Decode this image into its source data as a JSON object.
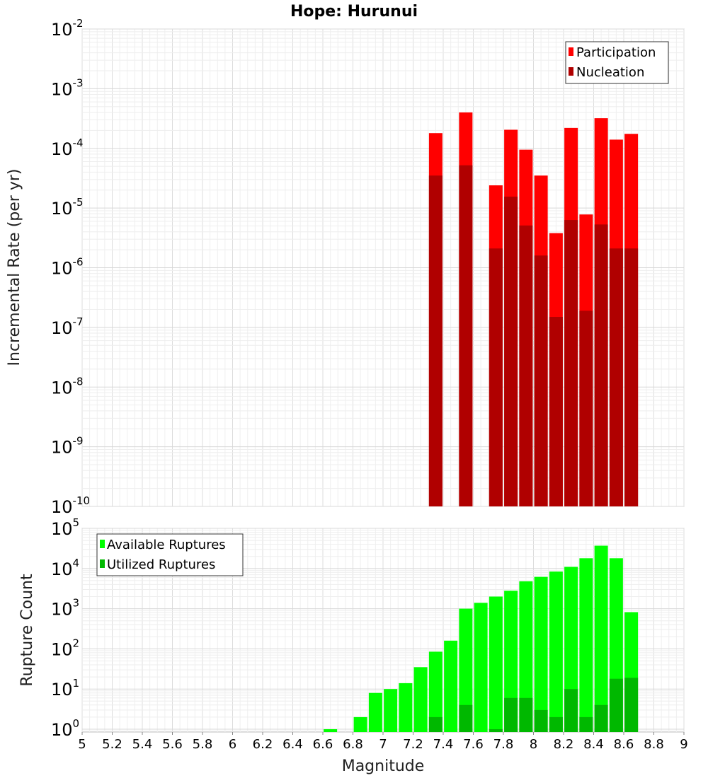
{
  "chart_data": [
    {
      "type": "bar",
      "title": "Hope: Hurunui",
      "xlabel": "",
      "ylabel": "Incremental Rate (per yr)",
      "y_scale": "log",
      "xlim": [
        5,
        9
      ],
      "ylim": [
        1e-10,
        0.01
      ],
      "y_tick_exponents": [
        -10,
        -9,
        -8,
        -7,
        -6,
        -5,
        -4,
        -3,
        -2
      ],
      "grid": true,
      "legend_position": "top-right",
      "colors": {
        "Participation": "#ff0000",
        "Nucleation": "#b00000"
      },
      "x": [
        7.35,
        7.55,
        7.75,
        7.85,
        7.95,
        8.05,
        8.15,
        8.25,
        8.35,
        8.45,
        8.55,
        8.65
      ],
      "series": [
        {
          "name": "Participation",
          "values": [
            0.00018,
            0.0004,
            2.4e-05,
            0.000205,
            9.5e-05,
            3.5e-05,
            3.8e-06,
            0.00022,
            7.8e-06,
            0.00032,
            0.00014,
            0.000175
          ]
        },
        {
          "name": "Nucleation",
          "values": [
            3.5e-05,
            5.2e-05,
            2.1e-06,
            1.55e-05,
            5.1e-06,
            1.6e-06,
            1.5e-07,
            6.3e-06,
            1.9e-07,
            5.3e-06,
            2.1e-06,
            2.1e-06
          ]
        }
      ]
    },
    {
      "type": "bar",
      "title": "",
      "xlabel": "Magnitude",
      "ylabel": "Rupture Count",
      "y_scale": "log",
      "xlim": [
        5,
        9
      ],
      "ylim": [
        0.85,
        100000
      ],
      "y_tick_exponents": [
        0,
        1,
        2,
        3,
        4,
        5
      ],
      "x_ticks": [
        "5",
        "5.2",
        "5.4",
        "5.6",
        "5.8",
        "6",
        "6.2",
        "6.4",
        "6.6",
        "6.8",
        "7",
        "7.2",
        "7.4",
        "7.6",
        "7.8",
        "8",
        "8.2",
        "8.4",
        "8.6",
        "8.8",
        "9"
      ],
      "grid": true,
      "legend_position": "top-left",
      "colors": {
        "Available Ruptures": "#00ff00",
        "Utilized Ruptures": "#00b800"
      },
      "x": [
        6.65,
        6.85,
        6.95,
        7.05,
        7.15,
        7.25,
        7.35,
        7.45,
        7.55,
        7.65,
        7.75,
        7.85,
        7.95,
        8.05,
        8.15,
        8.25,
        8.35,
        8.45,
        8.55,
        8.65
      ],
      "series": [
        {
          "name": "Available Ruptures",
          "values": [
            1,
            2,
            8,
            10,
            14,
            35,
            85,
            160,
            1000,
            1400,
            2000,
            2800,
            4800,
            6200,
            8400,
            11000,
            18000,
            37000,
            18000,
            820
          ]
        },
        {
          "name": "Utilized Ruptures",
          "values": [
            0,
            0,
            0,
            0,
            0,
            0,
            2,
            0,
            4,
            0,
            1,
            6,
            6,
            3,
            2,
            10,
            2,
            4,
            18,
            19
          ]
        }
      ]
    }
  ]
}
